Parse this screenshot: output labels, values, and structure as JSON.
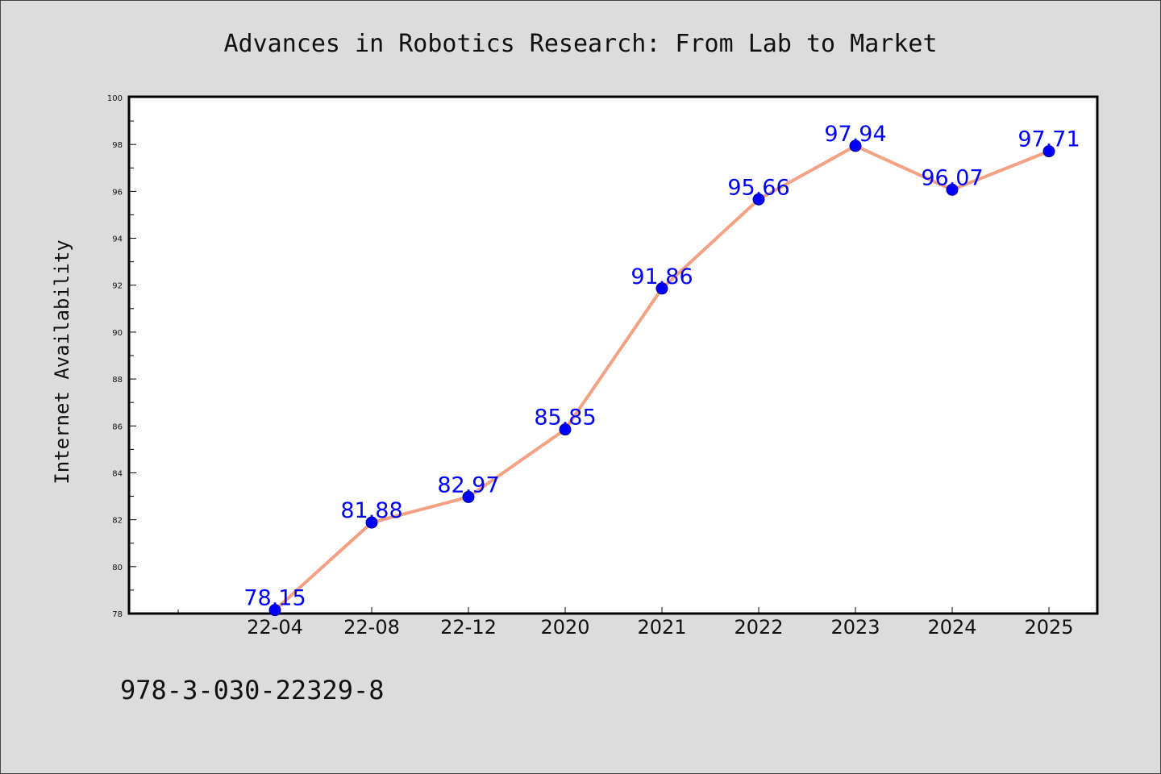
{
  "chart_data": {
    "type": "line",
    "title": "Advances in Robotics Research: From Lab to Market",
    "xlabel": "",
    "ylabel": "Internet Availability",
    "categories": [
      "22-04",
      "22-08",
      "22-12",
      "2020",
      "2021",
      "2022",
      "2023",
      "2024",
      "2025"
    ],
    "series": [
      {
        "values": [
          78.15,
          81.88,
          82.97,
          85.85,
          91.86,
          95.66,
          97.94,
          96.07,
          97.71
        ],
        "labels": [
          "78.15",
          "81.88",
          "82.97",
          "85.85",
          "91.86",
          "95.66",
          "97.94",
          "96.07",
          "97.71"
        ]
      }
    ],
    "ylim": [
      78,
      100
    ],
    "yticks": [
      "78",
      "80",
      "82",
      "84",
      "86",
      "88",
      "90",
      "92",
      "94",
      "96",
      "98",
      "100"
    ],
    "grid": false,
    "legend": "none",
    "colors": {
      "line": "#f4a082",
      "marker": "#0000ff",
      "marker_edge": "#00008b",
      "data_label": "#0000ff",
      "plot_background": "#ffffff",
      "figure_background": "#dcdcdc"
    }
  },
  "footer": {
    "isbn": "978-3-030-22329-8"
  }
}
